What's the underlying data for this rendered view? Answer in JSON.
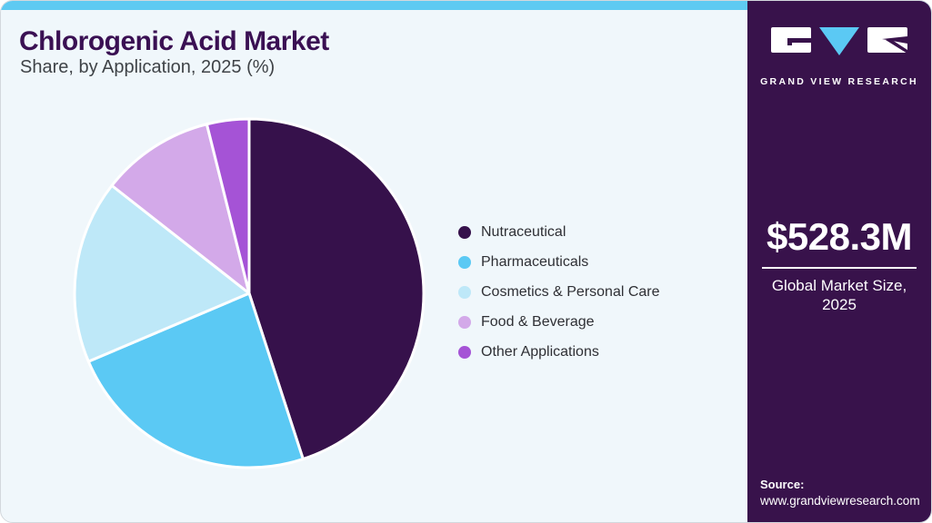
{
  "header": {
    "title": "Chlorogenic Acid Market",
    "subtitle": "Share, by Application, 2025 (%)"
  },
  "chart_data": {
    "type": "pie",
    "title": "Chlorogenic Acid Market Share, by Application, 2025 (%)",
    "categories": [
      "Nutraceutical",
      "Pharmaceuticals",
      "Cosmetics & Personal Care",
      "Food & Beverage",
      "Other Applications"
    ],
    "values": [
      45.0,
      23.6,
      17.0,
      10.5,
      3.9
    ],
    "colors": [
      "#36114B",
      "#5BC9F4",
      "#BEE8F8",
      "#D3A9E9",
      "#A553D6"
    ],
    "units": "%",
    "start_angle_deg": 0,
    "direction": "clockwise",
    "legend_position": "right",
    "value_labels_visible": false,
    "slice_gap_color": "#FFFFFF"
  },
  "sidebar": {
    "logo": {
      "brand": "GRAND VIEW RESEARCH"
    },
    "market_size": {
      "value": "$528.3M",
      "label": "Global Market Size, 2025"
    },
    "source": {
      "label": "Source:",
      "url": "www.grandviewresearch.com"
    }
  },
  "theme": {
    "accent_bar": "#5ECAF2",
    "main_bg": "#F0F7FB",
    "sidebar_bg": "#38124B",
    "title_color": "#3A1053",
    "subtitle_color": "#3F4347",
    "legend_text": "#2F3035",
    "gvr_blue": "#5BC9F4",
    "gvr_white": "#FFFFFF"
  }
}
